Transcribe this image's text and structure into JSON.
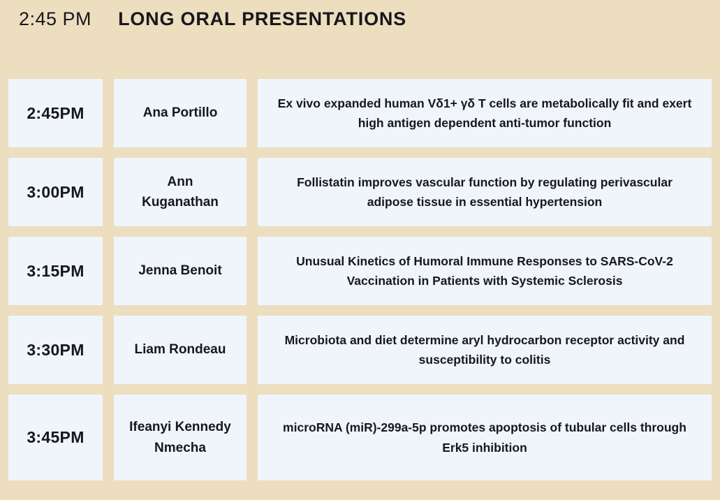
{
  "page": {
    "background_color": "#ecdebf",
    "cell_background_color": "#eff5fb",
    "text_color": "#17181b"
  },
  "header": {
    "time": "2:45 PM",
    "title": "LONG ORAL PRESENTATIONS"
  },
  "schedule": {
    "columns": [
      "time",
      "presenter",
      "title"
    ],
    "rows": [
      {
        "time": "2:45PM",
        "presenter": "Ana Portillo",
        "title": "Ex vivo expanded human Vδ1+ γδ T cells are metabolically fit and exert high antigen dependent anti-tumor function"
      },
      {
        "time": "3:00PM",
        "presenter": "Ann Kuganathan",
        "title": "Follistatin improves vascular function by regulating perivascular adipose tissue in essential hypertension"
      },
      {
        "time": "3:15PM",
        "presenter": "Jenna Benoit",
        "title": "Unusual Kinetics of Humoral Immune Responses to SARS-CoV-2 Vaccination in Patients with Systemic Sclerosis"
      },
      {
        "time": "3:30PM",
        "presenter": "Liam Rondeau",
        "title": "Microbiota and diet determine aryl hydrocarbon receptor activity and susceptibility to colitis"
      },
      {
        "time": "3:45PM",
        "presenter": "Ifeanyi Kennedy Nmecha",
        "title": "microRNA (miR)-299a-5p promotes apoptosis of tubular cells through Erk5 inhibition"
      }
    ]
  }
}
